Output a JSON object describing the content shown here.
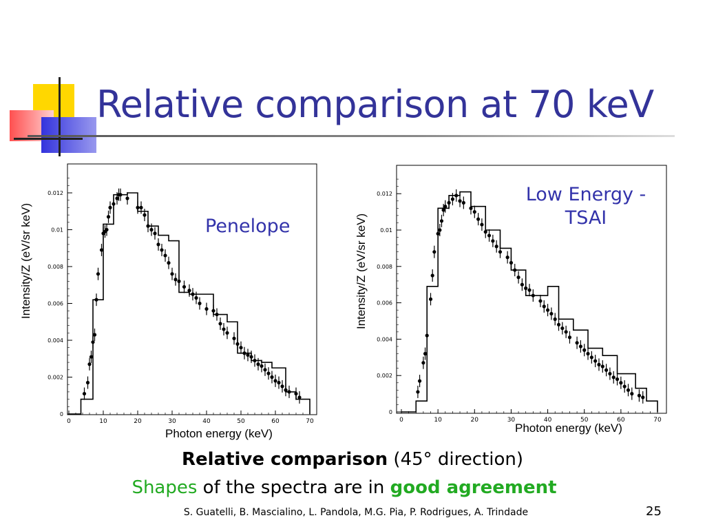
{
  "slide": {
    "title": "Relative comparison at 70 keV",
    "caption_bold": "Relative comparison",
    "caption_rest": " (45° direction)",
    "line2_shapes": "Shapes",
    "line2_mid": " of the spectra are in ",
    "line2_good": "good agreement",
    "authors": "S. Guatelli, B. Mascialino, L. Pandola, M.G. Pia, P. Rodrigues, A. Trindade",
    "page_number": "25",
    "colors": {
      "title": "#333399",
      "plot_label": "#3333aa",
      "green": "#22aa22"
    }
  },
  "chart_data": [
    {
      "type": "line",
      "label": "Penelope",
      "ylabel": "Intensity/Z (eV/sr keV)",
      "xlabel": "Photon energy (keV)",
      "xlim": [
        0,
        70
      ],
      "ylim": [
        0,
        0.013
      ],
      "xticks": [
        0,
        10,
        20,
        30,
        40,
        50,
        60,
        70
      ],
      "yticks": [
        0,
        0.002,
        0.004,
        0.006,
        0.008,
        0.01,
        0.012
      ],
      "ytick_labels": [
        "0",
        "0.002",
        "0.004",
        "0.006",
        "0.008",
        "0.01",
        "0.012"
      ],
      "series": [
        {
          "type": "histogram",
          "edges": [
            0,
            3.5,
            7,
            10,
            13,
            17,
            20,
            23,
            26,
            29,
            32,
            35,
            38,
            42,
            46,
            49,
            53,
            56,
            59,
            63,
            66,
            70
          ],
          "values": [
            0,
            0.0008,
            0.0062,
            0.0103,
            0.0119,
            0.012,
            0.011,
            0.0102,
            0.0097,
            0.0094,
            0.0066,
            0.0065,
            0.0065,
            0.0054,
            0.005,
            0.0033,
            0.0029,
            0.0028,
            0.0025,
            0.0012,
            0.0008
          ]
        },
        {
          "type": "points_with_error",
          "x": [
            4.5,
            5.5,
            6.0,
            6.5,
            7.0,
            7.5,
            8.0,
            8.5,
            9.5,
            10.0,
            10.5,
            11.0,
            11.5,
            12.0,
            13.0,
            14.0,
            14.5,
            15.0,
            17.0,
            20.0,
            21.0,
            22.0,
            23.0,
            24.0,
            25.0,
            26.0,
            27.0,
            28.0,
            29.0,
            30.0,
            31.0,
            32.0,
            33.5,
            35.0,
            36.0,
            37.0,
            38.0,
            40.0,
            42.0,
            43.0,
            44.0,
            45.0,
            46.0,
            48.0,
            49.0,
            50.0,
            51.0,
            52.0,
            53.0,
            54.0,
            55.0,
            56.0,
            57.0,
            58.0,
            59.0,
            60.0,
            61.0,
            62.0,
            63.0,
            64.0,
            66.0,
            67.0
          ],
          "y": [
            0.0011,
            0.0017,
            0.0027,
            0.0031,
            0.0039,
            0.0043,
            0.0062,
            0.0076,
            0.0089,
            0.0098,
            0.0099,
            0.01,
            0.0107,
            0.0112,
            0.0114,
            0.0117,
            0.0119,
            0.0119,
            0.0117,
            0.0112,
            0.0112,
            0.0108,
            0.0102,
            0.01,
            0.0098,
            0.0092,
            0.0089,
            0.0086,
            0.0082,
            0.0076,
            0.0073,
            0.0072,
            0.0069,
            0.0067,
            0.0065,
            0.0063,
            0.006,
            0.0057,
            0.0056,
            0.0054,
            0.0049,
            0.0046,
            0.0044,
            0.0041,
            0.0038,
            0.0036,
            0.0033,
            0.0032,
            0.0031,
            0.0029,
            0.0027,
            0.0026,
            0.0024,
            0.0022,
            0.002,
            0.0018,
            0.0017,
            0.0015,
            0.0013,
            0.0012,
            0.0011,
            0.0009
          ]
        }
      ]
    },
    {
      "type": "line",
      "label_lines": [
        "Low Energy -",
        "TSAI"
      ],
      "ylabel": "Intensity/Z (eV/sr keV)",
      "xlabel": "Photon energy (keV)",
      "xlim": [
        0,
        70
      ],
      "ylim": [
        0,
        0.013
      ],
      "xticks": [
        0,
        10,
        20,
        30,
        40,
        50,
        60,
        70
      ],
      "yticks": [
        0,
        0.002,
        0.004,
        0.006,
        0.008,
        0.01,
        0.012
      ],
      "ytick_labels": [
        "0",
        "0.002",
        "0.004",
        "0.006",
        "0.008",
        "0.01",
        "0.012"
      ],
      "series": [
        {
          "type": "histogram",
          "edges": [
            0,
            4,
            7,
            10,
            13,
            16,
            19,
            23,
            27,
            30,
            34,
            37,
            40,
            43,
            47,
            51,
            55,
            59,
            64,
            67,
            70
          ],
          "values": [
            0,
            0.0006,
            0.0069,
            0.0112,
            0.0119,
            0.0121,
            0.0113,
            0.01,
            0.009,
            0.0078,
            0.0064,
            0.0064,
            0.0069,
            0.0051,
            0.0045,
            0.0035,
            0.0031,
            0.0021,
            0.0013,
            0.0006
          ]
        },
        {
          "type": "points_with_error",
          "x": [
            4.5,
            5.0,
            6.0,
            6.5,
            7.0,
            8.0,
            8.5,
            9.0,
            10.0,
            10.5,
            11.0,
            11.5,
            12.0,
            13.0,
            14.0,
            15.0,
            16.0,
            17.0,
            19.0,
            20.0,
            21.0,
            22.0,
            23.0,
            24.0,
            25.0,
            26.0,
            27.0,
            29.0,
            30.0,
            31.0,
            32.0,
            33.0,
            34.0,
            35.0,
            36.0,
            38.0,
            39.0,
            40.0,
            41.0,
            42.0,
            43.0,
            44.0,
            45.0,
            46.0,
            48.0,
            49.0,
            50.0,
            51.0,
            52.0,
            53.0,
            54.0,
            55.0,
            56.0,
            57.0,
            58.0,
            59.0,
            60.0,
            61.0,
            62.0,
            63.0,
            65.0,
            66.0
          ],
          "y": [
            0.0011,
            0.0017,
            0.0027,
            0.0032,
            0.0042,
            0.0062,
            0.0075,
            0.0088,
            0.0098,
            0.01,
            0.0105,
            0.0111,
            0.0113,
            0.0115,
            0.0117,
            0.0119,
            0.0116,
            0.0115,
            0.0112,
            0.011,
            0.0106,
            0.0103,
            0.0099,
            0.0097,
            0.0094,
            0.0091,
            0.0088,
            0.0085,
            0.0082,
            0.0078,
            0.0074,
            0.007,
            0.0068,
            0.0067,
            0.0064,
            0.0061,
            0.0058,
            0.0056,
            0.0054,
            0.0051,
            0.0048,
            0.0046,
            0.0044,
            0.0041,
            0.0038,
            0.0036,
            0.0034,
            0.0032,
            0.003,
            0.0028,
            0.0026,
            0.0025,
            0.0023,
            0.0021,
            0.0019,
            0.0018,
            0.0016,
            0.0014,
            0.0012,
            0.001,
            0.0009,
            0.0008
          ]
        }
      ]
    }
  ]
}
